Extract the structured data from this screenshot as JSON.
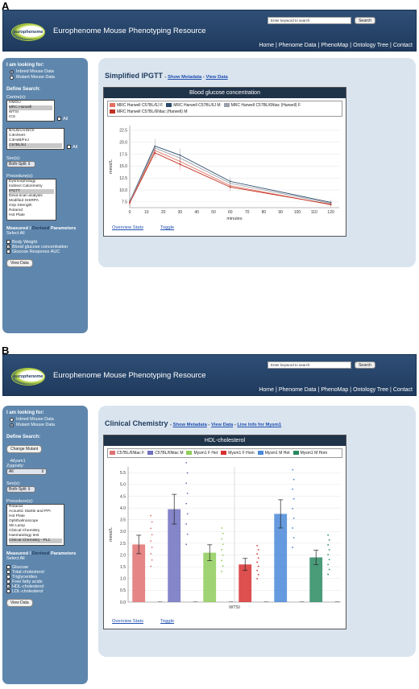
{
  "panel_a": {
    "label": "A",
    "header": {
      "title": "Europhenome Mouse Phenotyping Resource",
      "logo_text": "europhenome",
      "search_placeholder": "Enter keyword to search",
      "search_button": "Search",
      "nav": [
        "Home",
        "Phenome Data",
        "PhenoMap",
        "Ontology Tree",
        "Contact"
      ]
    },
    "sidebar": {
      "looking_for": "I am looking for:",
      "options": [
        "Inbred Mouse Data",
        "Mutant Mouse Data"
      ],
      "define_search": "Define Search:",
      "centres_label": "Centre(s):",
      "centres": [
        "HMGU",
        "MRC Harwell",
        "WTSI",
        "ICS"
      ],
      "all_label": "All",
      "strains": [
        "BALB/cAnNCrl",
        "C3H/HeH",
        "C3HeB/FeJ",
        "C57BL/6J"
      ],
      "sex_label": "Sex(s):",
      "sex_value": "Both-Split",
      "procedures_label": "Procedure(s):",
      "procedures": [
        "Dysmorphology",
        "Indirect Calorimetry",
        "IPGTT",
        "Dexa-scan analysis",
        "Modified SHIRPA",
        "Grip Strength",
        "Rotarod",
        "Hot Plate"
      ],
      "measured": "Measured",
      "slash": " / ",
      "derived": "Derived",
      "parameters": " Parameters",
      "select_all": "Select All",
      "params": [
        "Body Weight",
        "Blood glucose concentration",
        "Glucose Responce AUC"
      ],
      "view_data": "View Data"
    },
    "main": {
      "title": "Simplified IPGTT",
      "link1": "Show Metadata",
      "link2": "View Data",
      "dash": " - ",
      "overview": "Overview Stats",
      "toggle": "Toggle"
    }
  },
  "panel_b": {
    "label": "B",
    "header": {
      "title": "Europhenome Mouse Phenotyping Resource",
      "logo_text": "europhenome",
      "search_placeholder": "Enter keyword to search",
      "search_button": "Search",
      "nav": [
        "Home",
        "Phenome Data",
        "PhenoMap",
        "Ontology Tree",
        "Contact"
      ]
    },
    "sidebar": {
      "looking_for": "I am looking for:",
      "options": [
        "Inbred Mouse Data",
        "Mutant Mouse Data"
      ],
      "define_search": "Define Search:",
      "change_mutant": "Change Mutant",
      "mutant": "•Mysm1",
      "zygosity_label": "Zygosity:",
      "zygosity_value": "All",
      "sex_label": "Sex(s):",
      "sex_value": "Both-Split",
      "procedures_label": "Procedure(s):",
      "procedures": [
        "Rotarod",
        "Acoustic Startle and PPI",
        "Hot Plate",
        "Ophthalmoscope",
        "Slit Lamp",
        "Clinical Chemistry",
        "Haematology test",
        "Clinical Chemistry - PL1"
      ],
      "measured": "Measured",
      "slash": " / ",
      "derived": "Derived",
      "parameters": " Parameters",
      "select_all": "Select All",
      "params": [
        "Glucose",
        "Total cholesterol",
        "Triglycerides",
        "Free fatty acids",
        "HDL-cholesterol",
        "LDL-cholesterol"
      ],
      "view_data": "View Data"
    },
    "main": {
      "title": "Clinical Chemistry",
      "link1": "Show Metadata",
      "link2": "View Data",
      "link3": "Line Info for Mysm1",
      "dash": " - ",
      "overview": "Overview Stats",
      "toggle": "Toggle"
    }
  },
  "chart_data": [
    {
      "type": "line",
      "title": "Blood glucose concentration",
      "xlabel": "minutes",
      "ylabel": "mmol/L",
      "x": [
        0,
        15,
        30,
        60,
        120
      ],
      "xticks": [
        0,
        10,
        20,
        30,
        40,
        50,
        60,
        70,
        80,
        90,
        100,
        110,
        120
      ],
      "yticks": [
        7.5,
        10.0,
        12.5,
        15.0,
        17.5,
        20.0,
        22.5
      ],
      "ylim": [
        6.3,
        23.5
      ],
      "xlim": [
        0,
        125
      ],
      "series": [
        {
          "name": "MRC Harwell C57BL/6J F",
          "color": "#e07060",
          "values": [
            7.4,
            18.3,
            16.0,
            10.9,
            6.9
          ]
        },
        {
          "name": "MRC Harwell C57BL/6J M",
          "color": "#2a4a6a",
          "values": [
            7.6,
            19.2,
            17.3,
            11.8,
            7.4
          ]
        },
        {
          "name": "MRC Harwell C57BL/6Ntac (Harwell) F",
          "color": "#9aa0a8",
          "values": [
            7.5,
            18.8,
            16.7,
            11.4,
            7.2
          ]
        },
        {
          "name": "MRC Harwell C57BL/6Ntac (Harwell) M",
          "color": "#c03020",
          "values": [
            7.3,
            17.8,
            15.4,
            10.6,
            7.0
          ]
        }
      ]
    },
    {
      "type": "bar",
      "title": "HDL-cholesterol",
      "xlabel": "WTSI",
      "ylabel": "mmol/L",
      "yticks": [
        0,
        0.5,
        1.0,
        1.5,
        2.0,
        2.5,
        3.0,
        3.5,
        4.0,
        4.5,
        5.0,
        5.5
      ],
      "ylim": [
        0,
        5.75
      ],
      "series": [
        {
          "name": "C57BL/6Ntac F",
          "color": "#e07070",
          "values": [
            2.45
          ]
        },
        {
          "name": "C57BL/6Ntac M",
          "color": "#7070c0",
          "values": [
            3.95
          ]
        },
        {
          "name": "Mysm1 F Het",
          "color": "#8fcc5a",
          "values": [
            2.1
          ]
        },
        {
          "name": "Mysm1 F Hom",
          "color": "#d83030",
          "values": [
            1.6
          ]
        },
        {
          "name": "Mysm1 M Het",
          "color": "#4a88d8",
          "values": [
            3.75
          ]
        },
        {
          "name": "Mysm1 M Hom",
          "color": "#2a8a60",
          "values": [
            1.9
          ]
        }
      ]
    }
  ]
}
